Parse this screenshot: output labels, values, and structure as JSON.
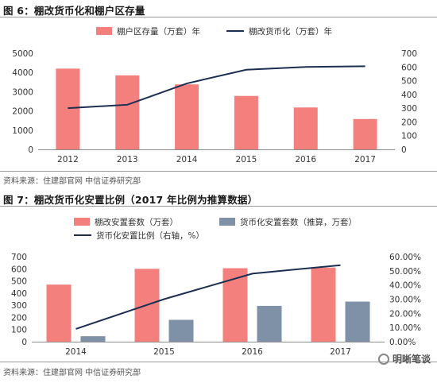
{
  "figure1": {
    "title": "图 6：棚改货币化和棚户区存量",
    "source": "资料来源：住建部官网  中信证券研究部"
  },
  "figure2": {
    "title": "图 7：棚改货币化安置比例（2017 年比例为推算数据）",
    "source": "资料来源：住建部官网  中信证券研究部"
  },
  "watermark": "明晰笔谈",
  "colors": {
    "bar_red": "#f4807e",
    "bar_gray": "#7f91a6",
    "line_navy": "#1c2e52"
  },
  "chart_data": [
    {
      "type": "bar",
      "title": "",
      "categories": [
        "2012",
        "2013",
        "2014",
        "2015",
        "2016",
        "2017"
      ],
      "series": [
        {
          "name": "棚户区存量（万套）年",
          "axis": "left",
          "values": [
            4200,
            3850,
            3380,
            2780,
            2180,
            1580
          ]
        },
        {
          "name": "棚改货币化（万套）年",
          "axis": "right",
          "type": "line",
          "values": [
            300,
            325,
            480,
            580,
            600,
            605
          ]
        }
      ],
      "ylim_left": [
        0,
        5000
      ],
      "ylim_right": [
        0,
        700
      ],
      "yticks_left": [
        "0",
        "1000",
        "2000",
        "3000",
        "4000",
        "5000"
      ],
      "yticks_right": [
        "0",
        "100",
        "200",
        "300",
        "400",
        "500",
        "600",
        "700"
      ],
      "grid": false,
      "legend": "top-center"
    },
    {
      "type": "bar",
      "title": "",
      "categories": [
        "2014",
        "2015",
        "2016",
        "2017"
      ],
      "series": [
        {
          "name": "棚改安置套数（万套）",
          "axis": "left",
          "values": [
            470,
            600,
            605,
            610
          ]
        },
        {
          "name": "货币化安置套数（推算，万套）",
          "axis": "left",
          "values": [
            45,
            180,
            295,
            330
          ]
        },
        {
          "name": "货币化安置比例（右轴，%）",
          "axis": "right",
          "type": "line",
          "values": [
            9.0,
            30.0,
            48.0,
            54.0
          ]
        }
      ],
      "ylim_left": [
        0,
        700
      ],
      "ylim_right": [
        0,
        60
      ],
      "yticks_left": [
        "0",
        "100",
        "200",
        "300",
        "400",
        "500",
        "600",
        "700"
      ],
      "yticks_right": [
        "0.00%",
        "10.00%",
        "20.00%",
        "30.00%",
        "40.00%",
        "50.00%",
        "60.00%"
      ],
      "grid": false,
      "legend": "top"
    }
  ]
}
